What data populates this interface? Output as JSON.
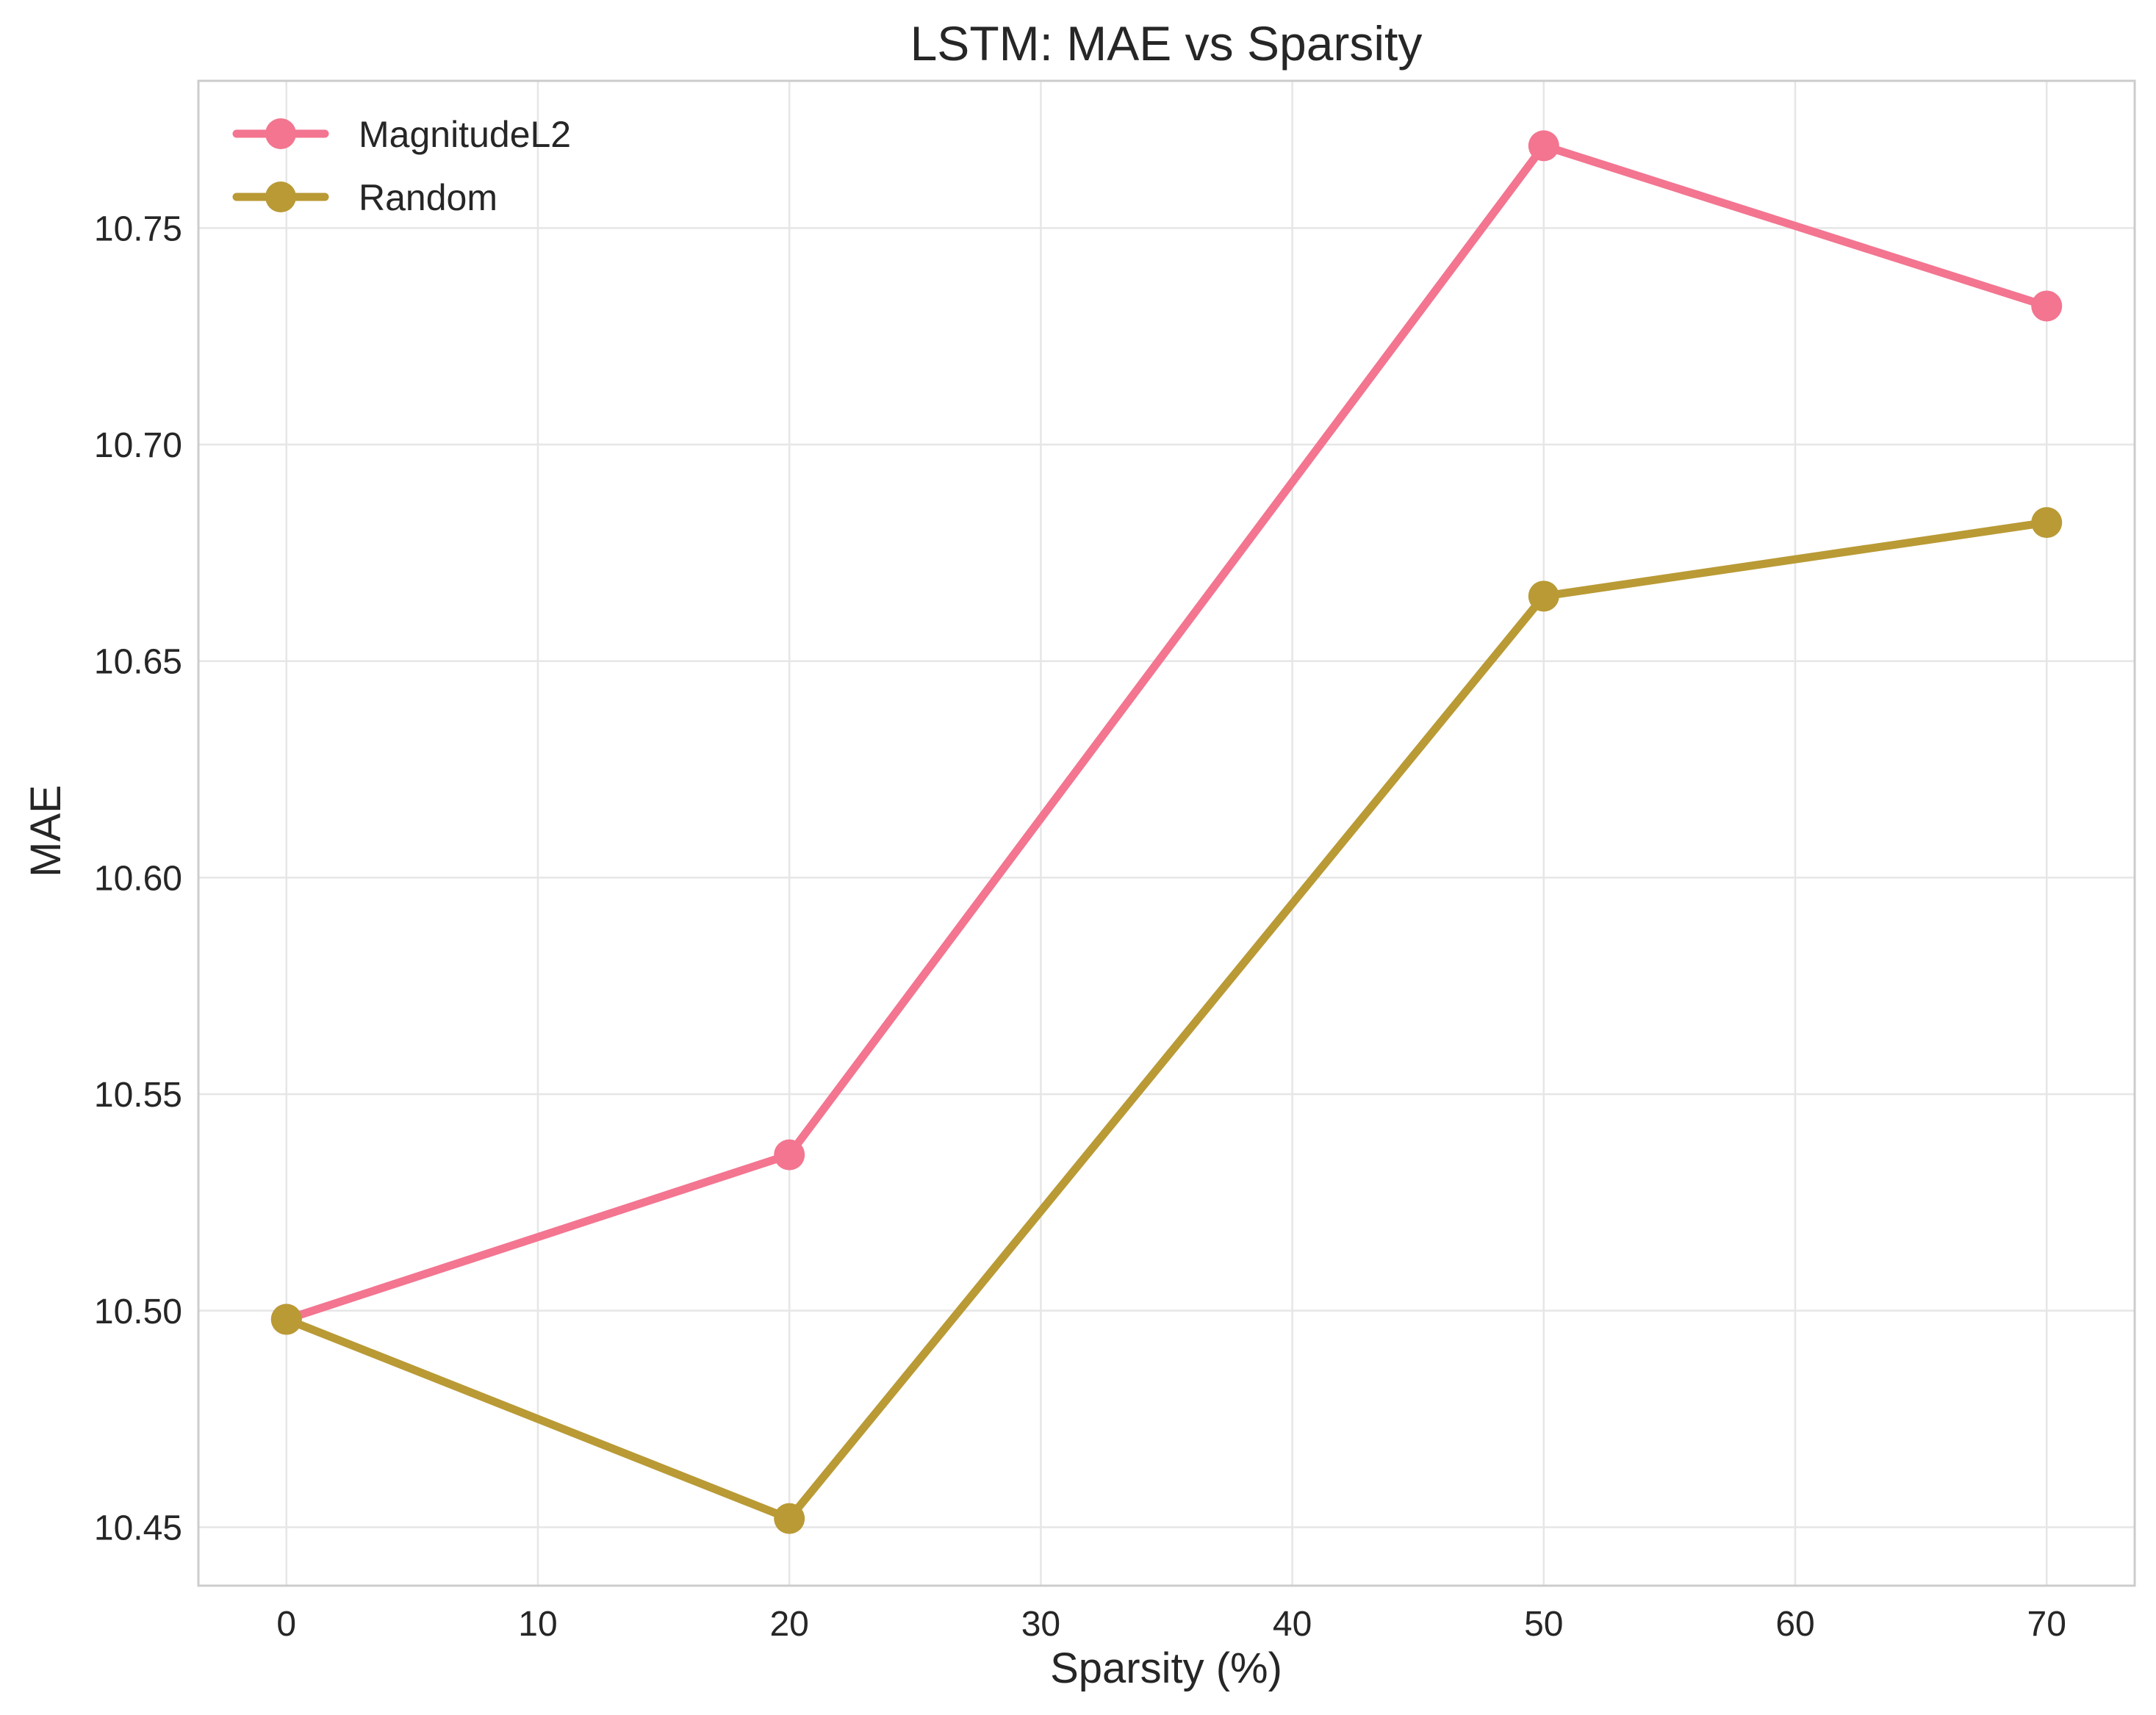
{
  "chart_data": {
    "type": "line",
    "title": "LSTM: MAE vs Sparsity",
    "xlabel": "Sparsity (%)",
    "ylabel": "MAE",
    "xlim": [
      -3.5,
      73.5
    ],
    "ylim": [
      10.4365,
      10.784
    ],
    "x_ticks": [
      0,
      10,
      20,
      30,
      40,
      50,
      60,
      70
    ],
    "y_ticks": [
      10.45,
      10.5,
      10.55,
      10.6,
      10.65,
      10.7,
      10.75
    ],
    "y_tick_labels": [
      "10.45",
      "10.50",
      "10.55",
      "10.60",
      "10.65",
      "10.70",
      "10.75"
    ],
    "grid": true,
    "legend_position": "top-left",
    "x": [
      0,
      20,
      50,
      70
    ],
    "series": [
      {
        "name": "MagnitudeL2",
        "color": "#f37590",
        "values": [
          10.498,
          10.536,
          10.769,
          10.732
        ]
      },
      {
        "name": "Random",
        "color": "#b99a35",
        "values": [
          10.498,
          10.452,
          10.665,
          10.682
        ]
      }
    ]
  }
}
